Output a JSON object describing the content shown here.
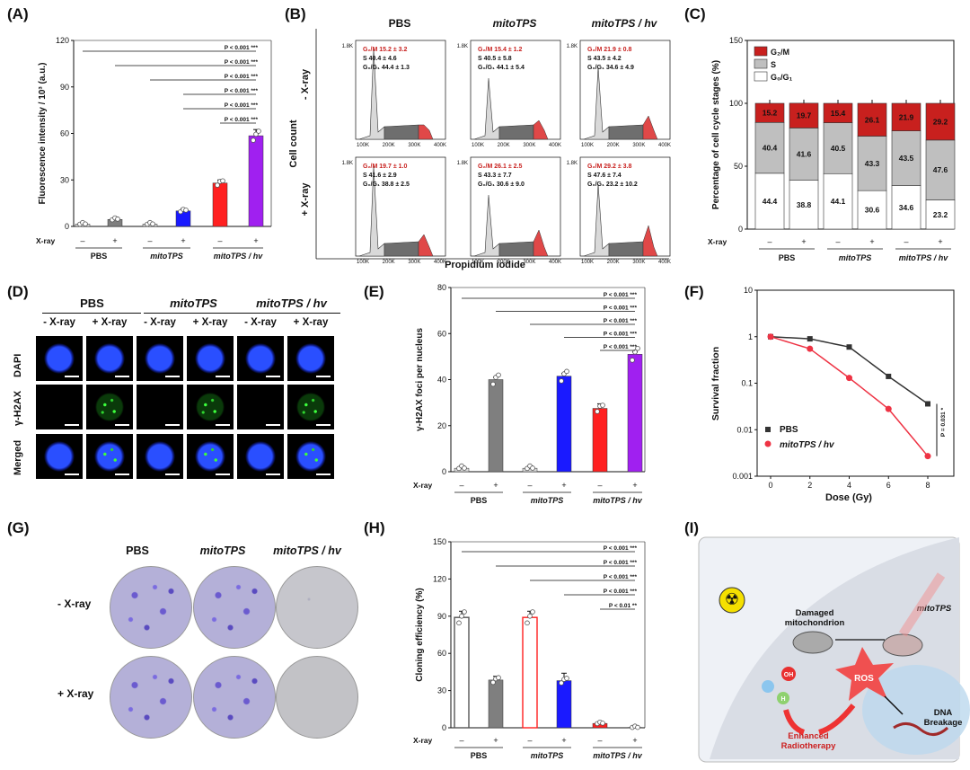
{
  "panels": {
    "A": "(A)",
    "B": "(B)",
    "C": "(C)",
    "D": "(D)",
    "E": "(E)",
    "F": "(F)",
    "G": "(G)",
    "H": "(H)",
    "I": "(I)"
  },
  "groups": {
    "pbs": "PBS",
    "mito": "mitoTPS",
    "mitohv": "mitoTPS / hv"
  },
  "xray": {
    "label": "X-ray",
    "minus": "–",
    "plus": "+",
    "minus_lbl": "- X-ray",
    "plus_lbl": "+ X-ray"
  },
  "colors": {
    "gray_light": "#d9d9d9",
    "gray_dark": "#7f7f7f",
    "blue": "#1a1aff",
    "red": "#ff2020",
    "purple": "#a020f0",
    "bar_red": "#c8201e",
    "bar_gray": "#bfbfbf",
    "line_black": "#333333",
    "line_red": "#ee3344"
  },
  "chart_data": [
    {
      "panel": "A",
      "type": "bar",
      "ylabel": "Fluorescence intensity / 10³ (a.u.)",
      "ylim": [
        0,
        120
      ],
      "yticks": [
        0,
        30,
        60,
        90,
        120
      ],
      "categories": [
        "PBS –",
        "PBS +",
        "mitoTPS –",
        "mitoTPS +",
        "mitoTPS / hv –",
        "mitoTPS / hv +"
      ],
      "values": [
        1.5,
        4.5,
        1.5,
        10,
        28,
        58.5
      ],
      "significance": [
        "P < 0.001 ***",
        "P < 0.001 ***",
        "P < 0.001 ***",
        "P < 0.001 ***",
        "P < 0.001 ***",
        "P < 0.001 ***"
      ]
    },
    {
      "panel": "B",
      "type": "histogram-grid",
      "xlabel": "Propidium iodide",
      "ylabel": "Cell count",
      "ticks": [
        "100K",
        "200K",
        "300K",
        "400K"
      ],
      "ytick": "1.8K",
      "rows": [
        "- X-ray",
        "+ X-ray"
      ],
      "cols": [
        "PBS",
        "mitoTPS",
        "mitoTPS / hv"
      ],
      "cells": [
        {
          "g2m": "G₂/M  15.2 ± 3.2",
          "s": "S      40.4 ± 4.6",
          "g01": "G₀/G₁ 44.4 ± 1.3"
        },
        {
          "g2m": "G₂/M  15.4 ± 1.2",
          "s": "S      40.5 ± 5.8",
          "g01": "G₀/G₁ 44.1 ± 5.4"
        },
        {
          "g2m": "G₂/M  21.9 ± 0.8",
          "s": "S      43.5 ± 4.2",
          "g01": "G₀/G₁ 34.6 ± 4.9"
        },
        {
          "g2m": "G₂/M  19.7 ± 1.0",
          "s": "S      41.6 ± 2.9",
          "g01": "G₀/G₁ 38.8 ± 2.5"
        },
        {
          "g2m": "G₂/M  26.1 ± 2.5",
          "s": "S      43.3 ± 7.7",
          "g01": "G₀/G₁ 30.6 ± 9.0"
        },
        {
          "g2m": "G₂/M  29.2 ± 3.8",
          "s": "S      47.6 ± 7.4",
          "g01": "G₀/G₁ 23.2 ± 10.2"
        }
      ]
    },
    {
      "panel": "C",
      "type": "bar",
      "stacked": true,
      "ylabel": "Percentage of cell cycle stages (%)",
      "ylim": [
        0,
        150
      ],
      "yticks": [
        0,
        50,
        100,
        150
      ],
      "legend": [
        "G₂/M",
        "S",
        "G₀/G₁"
      ],
      "g01": [
        44.4,
        38.8,
        44.1,
        30.6,
        34.6,
        23.2
      ],
      "s": [
        40.4,
        41.6,
        40.5,
        43.3,
        43.5,
        47.6
      ],
      "g2m": [
        15.2,
        19.7,
        15.4,
        26.1,
        21.9,
        29.2
      ],
      "labels_g01": [
        "44.4",
        "38.8",
        "44.1",
        "30.6",
        "34.6",
        "23.2"
      ],
      "labels_s": [
        "40.4",
        "41.6",
        "40.5",
        "43.3",
        "43.5",
        "47.6"
      ],
      "labels_g2m": [
        "15.2",
        "19.7",
        "15.4",
        "26.1",
        "21.9",
        "29.2"
      ]
    },
    {
      "panel": "E",
      "type": "bar",
      "ylabel": "γ-H2AX foci per nucleus",
      "ylim": [
        0,
        80
      ],
      "yticks": [
        0,
        20,
        40,
        60,
        80
      ],
      "values": [
        1.5,
        40,
        1.5,
        41.5,
        27.5,
        51
      ],
      "significance": [
        "P < 0.001 ***",
        "P < 0.001 ***",
        "P < 0.001 ***",
        "P < 0.001 ***",
        "P < 0.001 ***"
      ]
    },
    {
      "panel": "F",
      "type": "line",
      "xlabel": "Dose (Gy)",
      "ylabel": "Survival fraction",
      "yscale": "log",
      "ylim": [
        0.001,
        10
      ],
      "xticks": [
        0,
        2,
        4,
        6,
        8
      ],
      "yticks": [
        "0.001",
        "0.01",
        "0.1",
        "1",
        "10"
      ],
      "series": [
        {
          "name": "PBS",
          "x": [
            0,
            2,
            4,
            6,
            8
          ],
          "y": [
            1,
            0.9,
            0.6,
            0.14,
            0.036
          ]
        },
        {
          "name": "mitoTPS / hv",
          "x": [
            0,
            2,
            4,
            6,
            8
          ],
          "y": [
            1,
            0.55,
            0.13,
            0.028,
            0.0027
          ]
        }
      ],
      "annotation": "P = 0.031 *"
    },
    {
      "panel": "H",
      "type": "bar",
      "ylabel": "Cloning efficiency (%)",
      "ylim": [
        0,
        150
      ],
      "yticks": [
        0,
        30,
        60,
        90,
        120,
        150
      ],
      "values": [
        89,
        38.5,
        89,
        38,
        3.5,
        0.3
      ],
      "significance": [
        "P < 0.001 ***",
        "P < 0.001 ***",
        "P < 0.001 ***",
        "P < 0.001 ***",
        "P < 0.01 **"
      ]
    }
  ],
  "microscopy": {
    "rows": [
      "DAPI",
      "γ-H2AX",
      "Merged"
    ]
  },
  "schematic": {
    "damaged": "Damaged\nmitochondrion",
    "mito": "mitoTPS",
    "ros": "ROS",
    "oh": "OH",
    "h": "H",
    "dna": "DNA\nBreakage",
    "radio": "Enhanced\nRadiotherapy"
  }
}
